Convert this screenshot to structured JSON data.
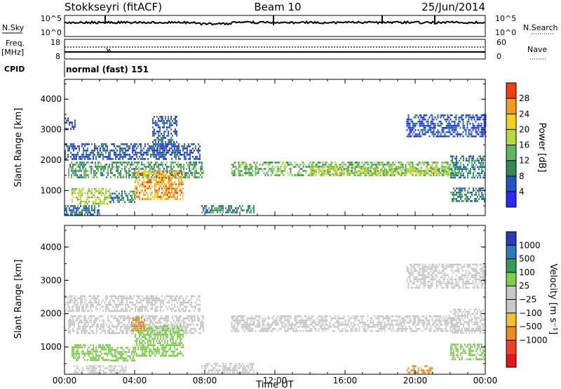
{
  "header": {
    "station": "Stokkseyri (fitACF)",
    "beam": "Beam 10",
    "date": "25/Jun/2014"
  },
  "housekeeping": {
    "nsky_label": "N.Sky",
    "nsky_ticks": [
      "10^5",
      "10^0"
    ],
    "nsearch_label": "N.Search",
    "freq_label": "Freq.",
    "freq_unit": "[MHz]",
    "freq_ticks": [
      "18",
      "8"
    ],
    "nave_label": "Nave",
    "nave_ticks": [
      "60",
      "0"
    ],
    "cpid_label": "CPID",
    "cpid_value": "normal (fast) 151"
  },
  "colors": {
    "power": [
      "#2a2aff",
      "#2255c8",
      "#2e8b57",
      "#5db85d",
      "#b8d840",
      "#f5d020",
      "#f59a20",
      "#f04010"
    ],
    "velocity": [
      "#e01818",
      "#f04020",
      "#f08a20",
      "#f5c030",
      "#c8c8c8",
      "#c8c8c8",
      "#7ad04a",
      "#2e9e50",
      "#2c7ac0",
      "#2a3ab8"
    ]
  },
  "chart_data": [
    {
      "type": "heatmap",
      "name": "power",
      "ylabel": "Slant Range [km]",
      "xlabel": "",
      "x_ticks": [
        "00:00",
        "04:00",
        "08:00",
        "12:00",
        "16:00",
        "20:00",
        "00:00"
      ],
      "y_ticks": [
        "1000",
        "2000",
        "3000",
        "4000"
      ],
      "ylim": [
        180,
        4650
      ],
      "colorbar": {
        "label": "Power [dB]",
        "ticks": [
          "4",
          "8",
          "12",
          "16",
          "20",
          "24",
          "28"
        ],
        "range": [
          0,
          32
        ]
      },
      "bands": [
        {
          "t0": 0.2,
          "t1": 7.9,
          "r0": 1400,
          "r1": 1950,
          "v": 12
        },
        {
          "t0": 0.4,
          "t1": 2.6,
          "r0": 580,
          "r1": 1080,
          "v": 18
        },
        {
          "t0": 2.6,
          "t1": 4.0,
          "r0": 620,
          "r1": 1000,
          "v": 10
        },
        {
          "t0": 4.0,
          "t1": 6.8,
          "r0": 720,
          "r1": 1650,
          "v": 25
        },
        {
          "t0": 0.0,
          "t1": 7.7,
          "r0": 2050,
          "r1": 2550,
          "v": 6
        },
        {
          "t0": 5.0,
          "t1": 6.4,
          "r0": 2250,
          "r1": 3450,
          "v": 6
        },
        {
          "t0": 7.8,
          "t1": 10.8,
          "r0": 250,
          "r1": 520,
          "v": 10
        },
        {
          "t0": 9.5,
          "t1": 22.5,
          "r0": 1500,
          "r1": 1950,
          "v": 14
        },
        {
          "t0": 14.0,
          "t1": 22.0,
          "r0": 1550,
          "r1": 1780,
          "v": 18
        },
        {
          "t0": 19.5,
          "t1": 24.0,
          "r0": 2800,
          "r1": 3500,
          "v": 5
        },
        {
          "t0": 22.0,
          "t1": 24.0,
          "r0": 650,
          "r1": 1100,
          "v": 9
        },
        {
          "t0": 22.0,
          "t1": 24.0,
          "r0": 1400,
          "r1": 2150,
          "v": 9
        },
        {
          "t0": 0.0,
          "t1": 2.0,
          "r0": 200,
          "r1": 520,
          "v": 8
        },
        {
          "t0": 0.0,
          "t1": 0.6,
          "r0": 3000,
          "r1": 3400,
          "v": 5
        }
      ]
    },
    {
      "type": "heatmap",
      "name": "velocity",
      "ylabel": "Slant Range [km]",
      "xlabel": "Time UT",
      "x_ticks": [
        "00:00",
        "04:00",
        "08:00",
        "12:00",
        "16:00",
        "20:00",
        "00:00"
      ],
      "y_ticks": [
        "1000",
        "2000",
        "3000",
        "4000"
      ],
      "ylim": [
        180,
        4650
      ],
      "colorbar": {
        "label": "Velocity [m s⁻¹]",
        "ticks": [
          "1000",
          "500",
          "100",
          "25",
          "−25",
          "−100",
          "−500",
          "−1000"
        ],
        "range": [
          -1250,
          1250
        ]
      },
      "bands": [
        {
          "t0": 0.2,
          "t1": 7.9,
          "r0": 1400,
          "r1": 1950,
          "v": 0
        },
        {
          "t0": 0.4,
          "t1": 2.6,
          "r0": 580,
          "r1": 1080,
          "v": 300
        },
        {
          "t0": 2.6,
          "t1": 4.0,
          "r0": 620,
          "r1": 1000,
          "v": 200
        },
        {
          "t0": 4.0,
          "t1": 6.8,
          "r0": 720,
          "r1": 1650,
          "v": 280
        },
        {
          "t0": 3.8,
          "t1": 4.6,
          "r0": 1500,
          "r1": 1900,
          "v": -300
        },
        {
          "t0": 0.0,
          "t1": 7.7,
          "r0": 2050,
          "r1": 2550,
          "v": 0
        },
        {
          "t0": 0.5,
          "t1": 3.5,
          "r0": 250,
          "r1": 450,
          "v": 60
        },
        {
          "t0": 7.8,
          "t1": 10.8,
          "r0": 250,
          "r1": 520,
          "v": 0
        },
        {
          "t0": 9.5,
          "t1": 22.5,
          "r0": 1500,
          "r1": 1950,
          "v": 0
        },
        {
          "t0": 19.5,
          "t1": 24.0,
          "r0": 2800,
          "r1": 3500,
          "v": 10
        },
        {
          "t0": 22.0,
          "t1": 24.0,
          "r0": 650,
          "r1": 1100,
          "v": 150
        },
        {
          "t0": 22.0,
          "t1": 24.0,
          "r0": 1400,
          "r1": 2150,
          "v": 0
        },
        {
          "t0": 19.5,
          "t1": 21.0,
          "r0": 250,
          "r1": 450,
          "v": -200
        }
      ]
    }
  ]
}
